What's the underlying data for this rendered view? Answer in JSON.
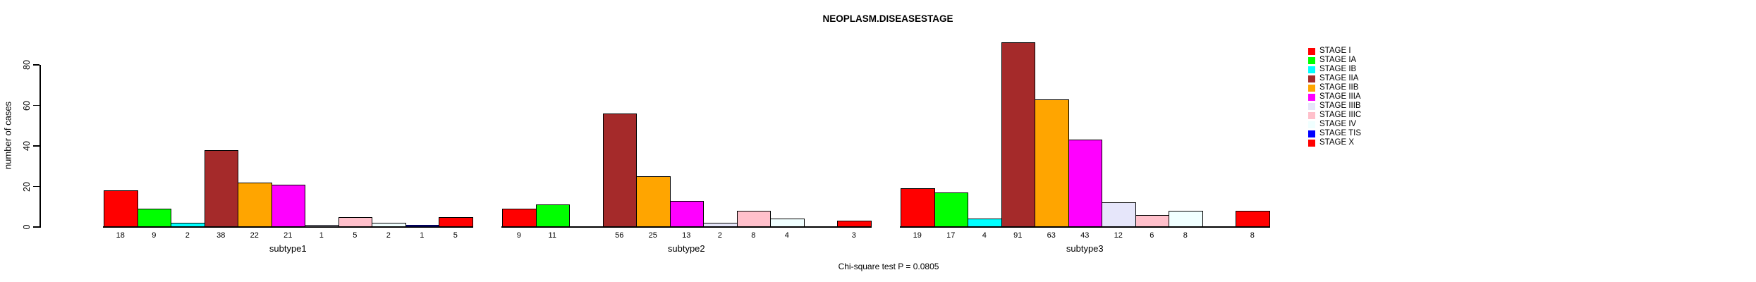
{
  "chart_data": {
    "type": "bar",
    "title": "NEOPLASM.DISEASESTAGE",
    "ylabel": "number of cases",
    "xlabel": "",
    "annotation": "Chi-square test P = 0.0805",
    "ylim": [
      0,
      80
    ],
    "yticks": [
      0,
      20,
      40,
      60,
      80
    ],
    "grid": false,
    "legend_position": "right",
    "show_value_labels": true,
    "categories": [
      "subtype1",
      "subtype2",
      "subtype3"
    ],
    "series": [
      {
        "name": "STAGE I",
        "color": "#FF0000",
        "values": [
          18,
          9,
          19
        ]
      },
      {
        "name": "STAGE IA",
        "color": "#00FF00",
        "values": [
          9,
          11,
          17
        ]
      },
      {
        "name": "STAGE IB",
        "color": "#00FFFF",
        "values": [
          2,
          0,
          4
        ]
      },
      {
        "name": "STAGE IIA",
        "color": "#A52A2A",
        "values": [
          38,
          56,
          91
        ]
      },
      {
        "name": "STAGE IIB",
        "color": "#FFA500",
        "values": [
          22,
          25,
          63
        ]
      },
      {
        "name": "STAGE IIIA",
        "color": "#FF00FF",
        "values": [
          21,
          13,
          43
        ]
      },
      {
        "name": "STAGE IIIB",
        "color": "#E6E6FA",
        "values": [
          1,
          2,
          12
        ]
      },
      {
        "name": "STAGE IIIC",
        "color": "#FFC0CB",
        "values": [
          5,
          8,
          6
        ]
      },
      {
        "name": "STAGE IV",
        "color": "#F0FFFF",
        "values": [
          2,
          4,
          8
        ]
      },
      {
        "name": "STAGE TIS",
        "color": "#0000FF",
        "values": [
          1,
          0,
          0
        ]
      },
      {
        "name": "STAGE X",
        "color": "#FF0000",
        "values": [
          5,
          3,
          8
        ]
      }
    ]
  }
}
